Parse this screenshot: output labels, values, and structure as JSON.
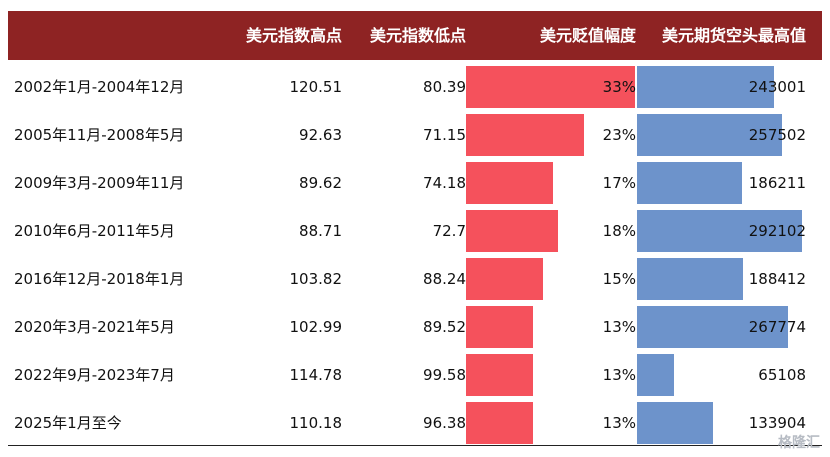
{
  "header": {
    "col_period": "",
    "col_high": "美元指数高点",
    "col_low": "美元指数低点",
    "col_decline": "美元贬值幅度",
    "col_short": "美元期货空头最高值"
  },
  "rows": [
    {
      "period": "2002年1月-2004年12月",
      "high": "120.51",
      "low": "80.39",
      "decline": "33%",
      "decline_value": 33,
      "short": "243001",
      "short_value": 243001
    },
    {
      "period": "2005年11月-2008年5月",
      "high": "92.63",
      "low": "71.15",
      "decline": "23%",
      "decline_value": 23,
      "short": "257502",
      "short_value": 257502
    },
    {
      "period": "2009年3月-2009年11月",
      "high": "89.62",
      "low": "74.18",
      "decline": "17%",
      "decline_value": 17,
      "short": "186211",
      "short_value": 186211
    },
    {
      "period": "2010年6月-2011年5月",
      "high": "88.71",
      "low": "72.7",
      "decline": "18%",
      "decline_value": 18,
      "short": "292102",
      "short_value": 292102
    },
    {
      "period": "2016年12月-2018年1月",
      "high": "103.82",
      "low": "88.24",
      "decline": "15%",
      "decline_value": 15,
      "short": "188412",
      "short_value": 188412
    },
    {
      "period": "2020年3月-2021年5月",
      "high": "102.99",
      "low": "89.52",
      "decline": "13%",
      "decline_value": 13,
      "short": "267774",
      "short_value": 267774
    },
    {
      "period": "2022年9月-2023年7月",
      "high": "114.78",
      "low": "99.58",
      "decline": "13%",
      "decline_value": 13,
      "short": "65108",
      "short_value": 65108
    },
    {
      "period": "2025年1月至今",
      "high": "110.18",
      "low": "96.38",
      "decline": "13%",
      "decline_value": 13,
      "short": "133904",
      "short_value": 133904
    }
  ],
  "watermark": "格隆汇",
  "colors": {
    "header_bg": "#8e2323",
    "decline_bar": "#f5515c",
    "short_bar": "#6d93cb"
  }
}
